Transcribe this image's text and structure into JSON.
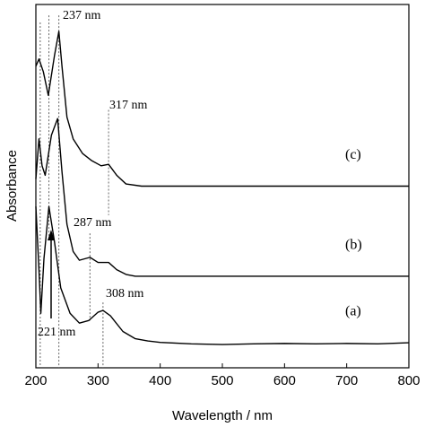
{
  "chart_data": {
    "type": "line",
    "xlabel": "Wavelength / nm",
    "ylabel": "Absorbance",
    "xlim": [
      200,
      800
    ],
    "xticks": [
      200,
      300,
      400,
      500,
      600,
      700,
      800
    ],
    "ylim": [
      0,
      100
    ],
    "series": [
      {
        "name": "(a)",
        "color": "#000000",
        "x": [
          200,
          205,
          208,
          213,
          221,
          230,
          240,
          255,
          270,
          285,
          300,
          308,
          320,
          340,
          360,
          380,
          400,
          450,
          500,
          550,
          600,
          650,
          700,
          750,
          800
        ],
        "values": [
          44.4,
          27,
          15,
          30,
          44.4,
          34.6,
          22,
          15,
          12.3,
          13,
          15.3,
          15.8,
          14.3,
          10,
          8,
          7.4,
          7,
          6.6,
          6.4,
          6.6,
          6.7,
          6.6,
          6.7,
          6.6,
          6.9
        ]
      },
      {
        "name": "(b)",
        "color": "#000000",
        "x": [
          200,
          205,
          210,
          215,
          225,
          235,
          242,
          250,
          260,
          270,
          287,
          300,
          317,
          330,
          345,
          360,
          400,
          500,
          600,
          700,
          800
        ],
        "values": [
          52,
          63,
          55.6,
          53,
          64,
          68.6,
          54,
          39.5,
          32,
          29.6,
          30.4,
          29,
          29,
          27,
          25.7,
          25.2,
          25.2,
          25.2,
          25.2,
          25.2,
          25.2
        ]
      },
      {
        "name": "(c)",
        "color": "#000000",
        "x": [
          200,
          205,
          212,
          220,
          230,
          237,
          242,
          250,
          260,
          275,
          290,
          305,
          317,
          330,
          345,
          370,
          400,
          500,
          600,
          700,
          800
        ],
        "values": [
          83,
          85,
          81.5,
          75,
          86,
          92.6,
          83,
          69,
          63,
          59,
          57,
          55.6,
          56,
          53,
          50.6,
          50,
          50,
          50,
          50,
          50,
          50
        ]
      }
    ],
    "annotations": [
      {
        "label": "237 nm",
        "x": 237,
        "y": [
          0,
          97
        ]
      },
      {
        "label": "317 nm",
        "x": 317,
        "y": [
          42,
          71
        ]
      },
      {
        "label": "287 nm",
        "x": 287,
        "y": [
          13,
          37
        ]
      },
      {
        "label": "308 nm",
        "x": 308,
        "y": [
          0,
          18
        ]
      },
      {
        "label": "221 nm",
        "x": 221,
        "y": [
          36,
          97
        ]
      }
    ],
    "guides": [
      207
    ]
  }
}
